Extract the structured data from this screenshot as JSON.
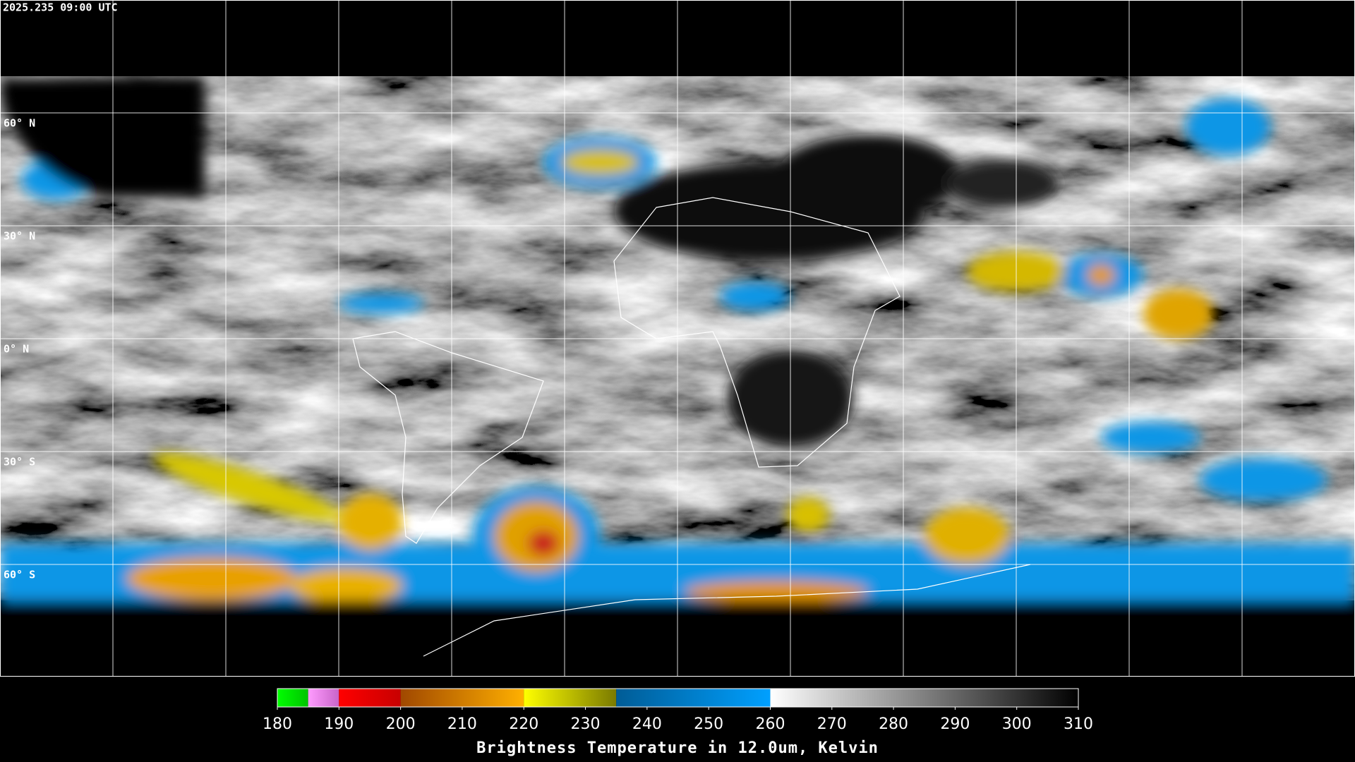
{
  "timestamp": "2025.235 09:00 UTC",
  "latitudes": {
    "lim": [
      90,
      -90
    ],
    "lines": [
      {
        "value": 60,
        "label": "60° N"
      },
      {
        "value": 30,
        "label": "30° N"
      },
      {
        "value": 0,
        "label": "0° N"
      },
      {
        "value": -30,
        "label": "30° S"
      },
      {
        "value": -60,
        "label": "60° S"
      }
    ]
  },
  "colorbar": {
    "lim": [
      180,
      310
    ],
    "ticks": [
      180,
      190,
      200,
      210,
      220,
      230,
      240,
      250,
      260,
      270,
      280,
      290,
      300,
      310
    ],
    "label": "Brightness Temperature in 12.0um, Kelvin",
    "segments": [
      {
        "from": 180,
        "to": 185,
        "colors": [
          "#00ff00",
          "#00c400"
        ]
      },
      {
        "from": 185,
        "to": 190,
        "colors": [
          "#ff9cff",
          "#c864c8"
        ]
      },
      {
        "from": 190,
        "to": 200,
        "colors": [
          "#ff0000",
          "#c80000"
        ]
      },
      {
        "from": 200,
        "to": 220,
        "colors": [
          "#a04800",
          "#ffb000"
        ]
      },
      {
        "from": 220,
        "to": 235,
        "colors": [
          "#ffff00",
          "#7a7a00"
        ]
      },
      {
        "from": 235,
        "to": 260,
        "colors": [
          "#005c96",
          "#00a0ff"
        ]
      },
      {
        "from": 260,
        "to": 310,
        "colors": [
          "#ffffff",
          "#000000"
        ]
      }
    ]
  }
}
